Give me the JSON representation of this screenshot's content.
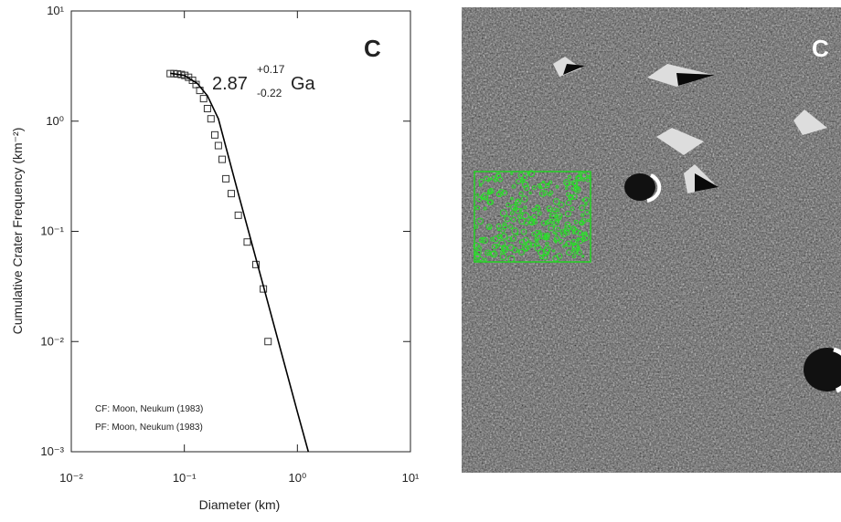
{
  "chart_data": {
    "type": "scatter",
    "x_label": "Diameter (km)",
    "y_label": "Cumulative Crater Frequency (km⁻²)",
    "panel_label": "C",
    "annotations": {
      "age": "2.87",
      "age_plus": "+0.17",
      "age_minus": "-0.22",
      "age_unit": "Ga",
      "chronology": "CF: Moon, Neukum (1983)",
      "production": "PF: Moon, Neukum (1983)"
    },
    "log_x": true,
    "log_y": true,
    "xlim": [
      0.01,
      10
    ],
    "ylim": [
      0.001,
      10
    ],
    "xticks": [
      {
        "value": 0.01,
        "label": "10⁻²"
      },
      {
        "value": 0.1,
        "label": "10⁻¹"
      },
      {
        "value": 1,
        "label": "10⁰"
      },
      {
        "value": 10,
        "label": "10¹"
      }
    ],
    "yticks": [
      {
        "value": 0.001,
        "label": "10⁻³"
      },
      {
        "value": 0.01,
        "label": "10⁻²"
      },
      {
        "value": 0.1,
        "label": "10⁻¹"
      },
      {
        "value": 1,
        "label": "10⁰"
      },
      {
        "value": 10,
        "label": "10¹"
      }
    ],
    "series": [
      {
        "kind": "points",
        "color": "#333333",
        "x": [
          0.075,
          0.081,
          0.087,
          0.094,
          0.101,
          0.109,
          0.118,
          0.127,
          0.137,
          0.148,
          0.16,
          0.172,
          0.186,
          0.2,
          0.216,
          0.233,
          0.26,
          0.3,
          0.36,
          0.43,
          0.5,
          0.55
        ],
        "values": [
          2.7,
          2.7,
          2.68,
          2.65,
          2.6,
          2.5,
          2.35,
          2.15,
          1.9,
          1.6,
          1.3,
          1.05,
          0.75,
          0.6,
          0.45,
          0.3,
          0.22,
          0.14,
          0.08,
          0.05,
          0.03,
          0.01
        ]
      },
      {
        "kind": "line",
        "color": "#000000",
        "x": [
          0.075,
          0.1,
          0.13,
          0.16,
          0.2,
          0.3,
          0.5,
          1.0,
          1.25
        ],
        "values": [
          2.72,
          2.6,
          2.2,
          1.7,
          1.05,
          0.22,
          0.032,
          0.0023,
          0.001
        ]
      }
    ]
  },
  "image": {
    "label": "C"
  }
}
